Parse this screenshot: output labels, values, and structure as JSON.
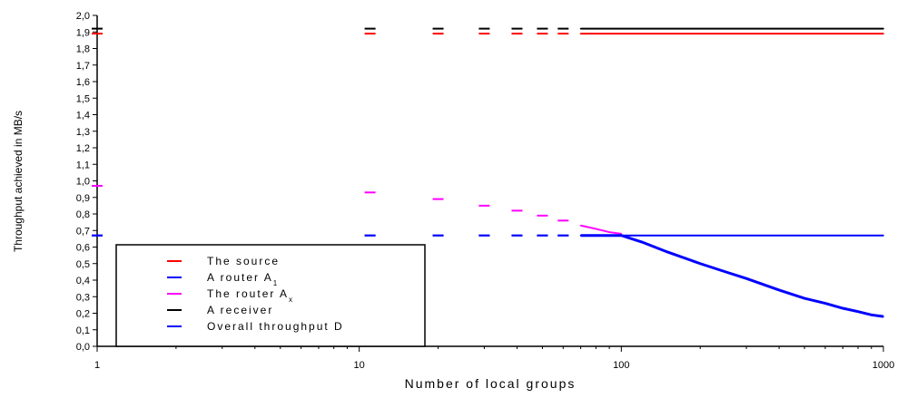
{
  "chart_data": {
    "type": "line",
    "xscale": "log",
    "xlim": [
      1,
      1000
    ],
    "ylim": [
      0,
      2.0
    ],
    "xlabel": "Number of local groups",
    "ylabel": "Throughput achieved in MB/s",
    "xticks": [
      "1",
      "10",
      "100",
      "1000"
    ],
    "yticks": [
      "0,0",
      "0,1",
      "0,2",
      "0,3",
      "0,4",
      "0,5",
      "0,6",
      "0,7",
      "0,8",
      "0,9",
      "1,0",
      "1,1",
      "1,2",
      "1,3",
      "1,4",
      "1,5",
      "1,6",
      "1,7",
      "1,8",
      "1,9",
      "2,0"
    ],
    "legend_position": "bottom-left",
    "series": [
      {
        "name": "The source",
        "color": "#ff0000",
        "x": [
          1,
          11,
          20,
          30,
          40,
          50,
          60,
          70,
          80,
          90,
          100,
          150,
          200,
          300,
          400,
          500,
          600,
          700,
          800,
          900,
          1000
        ],
        "y": [
          1.89,
          1.89,
          1.89,
          1.89,
          1.89,
          1.89,
          1.89,
          1.89,
          1.89,
          1.89,
          1.89,
          1.89,
          1.89,
          1.89,
          1.89,
          1.89,
          1.89,
          1.89,
          1.89,
          1.89,
          1.89
        ]
      },
      {
        "name": "A router A1",
        "name_main": "A router A",
        "name_sub": "1",
        "color": "#0000ff",
        "x": [
          1,
          11,
          20,
          30,
          40,
          50,
          60,
          70,
          80,
          90,
          100,
          150,
          200,
          300,
          400,
          500,
          600,
          700,
          800,
          900,
          1000
        ],
        "y": [
          0.67,
          0.67,
          0.67,
          0.67,
          0.67,
          0.67,
          0.67,
          0.67,
          0.67,
          0.67,
          0.67,
          0.67,
          0.67,
          0.67,
          0.67,
          0.67,
          0.67,
          0.67,
          0.67,
          0.67,
          0.67
        ]
      },
      {
        "name": "The router Ax",
        "name_main": "The router A",
        "name_sub": "x",
        "color": "#ff00ff",
        "x": [
          1,
          11,
          20,
          30,
          40,
          50,
          60,
          70,
          80,
          90,
          100
        ],
        "y": [
          0.97,
          0.93,
          0.89,
          0.85,
          0.82,
          0.79,
          0.76,
          0.73,
          0.71,
          0.69,
          0.68
        ]
      },
      {
        "name": "A receiver",
        "color": "#000000",
        "x": [
          1,
          11,
          20,
          30,
          40,
          50,
          60,
          70,
          80,
          90,
          100,
          150,
          200,
          300,
          400,
          500,
          600,
          700,
          800,
          900,
          1000
        ],
        "y": [
          1.92,
          1.92,
          1.92,
          1.92,
          1.92,
          1.92,
          1.92,
          1.92,
          1.92,
          1.92,
          1.92,
          1.92,
          1.92,
          1.92,
          1.92,
          1.92,
          1.92,
          1.92,
          1.92,
          1.92,
          1.92
        ]
      },
      {
        "name": "Overall throughput D",
        "color": "#0000ff",
        "x": [
          1,
          11,
          20,
          30,
          40,
          50,
          60,
          70,
          80,
          90,
          100,
          120,
          150,
          200,
          250,
          300,
          400,
          500,
          600,
          700,
          800,
          900,
          1000
        ],
        "y": [
          0.67,
          0.67,
          0.67,
          0.67,
          0.67,
          0.67,
          0.67,
          0.67,
          0.67,
          0.67,
          0.67,
          0.63,
          0.57,
          0.5,
          0.45,
          0.41,
          0.34,
          0.29,
          0.26,
          0.23,
          0.21,
          0.19,
          0.18
        ]
      }
    ]
  }
}
